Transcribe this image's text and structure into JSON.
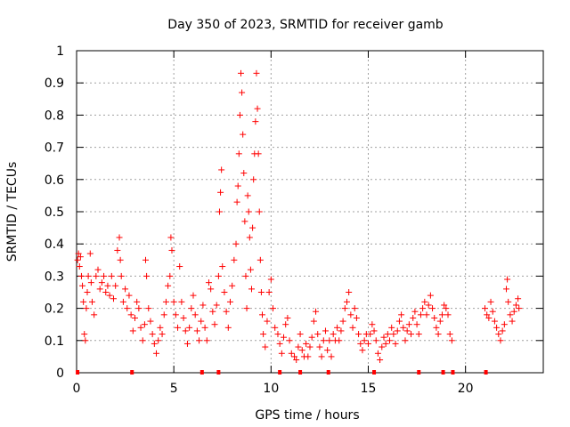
{
  "chart_data": {
    "type": "scatter",
    "title": "Day 350 of 2023, SRMTID for receiver gamb",
    "xlabel": "GPS time / hours",
    "ylabel": "SRMTID / TECUs",
    "xlim": [
      0,
      24
    ],
    "ylim": [
      0,
      1
    ],
    "x_ticks": [
      "0",
      "5",
      "10",
      "15",
      "20"
    ],
    "x_tick_values": [
      0,
      5,
      10,
      15,
      20
    ],
    "y_ticks": [
      "0",
      "0.1",
      "0.2",
      "0.3",
      "0.4",
      "0.5",
      "0.6",
      "0.7",
      "0.8",
      "0.9",
      "1"
    ],
    "y_tick_values": [
      0,
      0.1,
      0.2,
      0.3,
      0.4,
      0.5,
      0.6,
      0.7,
      0.8,
      0.9,
      1
    ],
    "grid": true,
    "marker": "+",
    "series": [
      {
        "name": "SRMTID",
        "color": "#ff0000",
        "points": [
          [
            0.05,
            0.35
          ],
          [
            0.1,
            0.37
          ],
          [
            0.15,
            0.33
          ],
          [
            0.2,
            0.36
          ],
          [
            0.25,
            0.3
          ],
          [
            0.3,
            0.27
          ],
          [
            0.35,
            0.22
          ],
          [
            0.4,
            0.12
          ],
          [
            0.45,
            0.1
          ],
          [
            0.5,
            0.2
          ],
          [
            0.55,
            0.25
          ],
          [
            0.6,
            0.3
          ],
          [
            0.7,
            0.37
          ],
          [
            0.75,
            0.28
          ],
          [
            0.8,
            0.22
          ],
          [
            0.9,
            0.18
          ],
          [
            1.0,
            0.3
          ],
          [
            1.1,
            0.32
          ],
          [
            1.2,
            0.26
          ],
          [
            1.3,
            0.28
          ],
          [
            1.4,
            0.3
          ],
          [
            1.5,
            0.25
          ],
          [
            1.6,
            0.27
          ],
          [
            1.7,
            0.24
          ],
          [
            1.8,
            0.3
          ],
          [
            1.9,
            0.23
          ],
          [
            2.0,
            0.27
          ],
          [
            2.1,
            0.38
          ],
          [
            2.2,
            0.42
          ],
          [
            2.25,
            0.35
          ],
          [
            2.3,
            0.3
          ],
          [
            2.4,
            0.22
          ],
          [
            2.5,
            0.26
          ],
          [
            2.6,
            0.2
          ],
          [
            2.7,
            0.24
          ],
          [
            2.8,
            0.18
          ],
          [
            2.9,
            0.13
          ],
          [
            3.0,
            0.17
          ],
          [
            3.1,
            0.22
          ],
          [
            3.2,
            0.2
          ],
          [
            3.3,
            0.14
          ],
          [
            3.4,
            0.1
          ],
          [
            3.5,
            0.15
          ],
          [
            3.55,
            0.35
          ],
          [
            3.6,
            0.3
          ],
          [
            3.7,
            0.2
          ],
          [
            3.8,
            0.16
          ],
          [
            3.9,
            0.12
          ],
          [
            4.0,
            0.09
          ],
          [
            4.1,
            0.06
          ],
          [
            4.2,
            0.1
          ],
          [
            4.3,
            0.14
          ],
          [
            4.4,
            0.12
          ],
          [
            4.5,
            0.18
          ],
          [
            4.6,
            0.22
          ],
          [
            4.7,
            0.27
          ],
          [
            4.8,
            0.3
          ],
          [
            4.85,
            0.42
          ],
          [
            4.9,
            0.38
          ],
          [
            5.0,
            0.22
          ],
          [
            5.1,
            0.18
          ],
          [
            5.2,
            0.14
          ],
          [
            5.3,
            0.33
          ],
          [
            5.4,
            0.22
          ],
          [
            5.5,
            0.17
          ],
          [
            5.6,
            0.13
          ],
          [
            5.7,
            0.09
          ],
          [
            5.8,
            0.14
          ],
          [
            5.9,
            0.2
          ],
          [
            6.0,
            0.24
          ],
          [
            6.1,
            0.18
          ],
          [
            6.2,
            0.13
          ],
          [
            6.3,
            0.1
          ],
          [
            6.4,
            0.16
          ],
          [
            6.5,
            0.21
          ],
          [
            6.6,
            0.14
          ],
          [
            6.7,
            0.1
          ],
          [
            6.8,
            0.28
          ],
          [
            6.9,
            0.26
          ],
          [
            7.0,
            0.19
          ],
          [
            7.1,
            0.15
          ],
          [
            7.2,
            0.21
          ],
          [
            7.3,
            0.3
          ],
          [
            7.35,
            0.5
          ],
          [
            7.4,
            0.56
          ],
          [
            7.45,
            0.63
          ],
          [
            7.5,
            0.33
          ],
          [
            7.6,
            0.25
          ],
          [
            7.7,
            0.19
          ],
          [
            7.8,
            0.14
          ],
          [
            7.9,
            0.22
          ],
          [
            8.0,
            0.27
          ],
          [
            8.1,
            0.35
          ],
          [
            8.2,
            0.4
          ],
          [
            8.25,
            0.53
          ],
          [
            8.3,
            0.58
          ],
          [
            8.35,
            0.68
          ],
          [
            8.4,
            0.8
          ],
          [
            8.45,
            0.93
          ],
          [
            8.5,
            0.87
          ],
          [
            8.55,
            0.74
          ],
          [
            8.6,
            0.62
          ],
          [
            8.65,
            0.47
          ],
          [
            8.7,
            0.3
          ],
          [
            8.75,
            0.2
          ],
          [
            8.8,
            0.55
          ],
          [
            8.85,
            0.5
          ],
          [
            8.9,
            0.42
          ],
          [
            8.95,
            0.32
          ],
          [
            9.0,
            0.26
          ],
          [
            9.05,
            0.45
          ],
          [
            9.1,
            0.6
          ],
          [
            9.15,
            0.68
          ],
          [
            9.2,
            0.78
          ],
          [
            9.25,
            0.93
          ],
          [
            9.3,
            0.82
          ],
          [
            9.35,
            0.68
          ],
          [
            9.4,
            0.5
          ],
          [
            9.45,
            0.35
          ],
          [
            9.5,
            0.25
          ],
          [
            9.55,
            0.18
          ],
          [
            9.6,
            0.12
          ],
          [
            9.7,
            0.08
          ],
          [
            9.8,
            0.16
          ],
          [
            9.9,
            0.25
          ],
          [
            10.0,
            0.29
          ],
          [
            10.1,
            0.2
          ],
          [
            10.2,
            0.14
          ],
          [
            10.35,
            0.12
          ],
          [
            10.45,
            0.09
          ],
          [
            10.55,
            0.06
          ],
          [
            10.65,
            0.11
          ],
          [
            10.75,
            0.15
          ],
          [
            10.85,
            0.17
          ],
          [
            10.95,
            0.1
          ],
          [
            11.05,
            0.06
          ],
          [
            11.2,
            0.05
          ],
          [
            11.3,
            0.04
          ],
          [
            11.4,
            0.08
          ],
          [
            11.5,
            0.12
          ],
          [
            11.6,
            0.07
          ],
          [
            11.7,
            0.05
          ],
          [
            11.8,
            0.09
          ],
          [
            11.9,
            0.05
          ],
          [
            12.0,
            0.08
          ],
          [
            12.1,
            0.11
          ],
          [
            12.2,
            0.16
          ],
          [
            12.3,
            0.19
          ],
          [
            12.4,
            0.12
          ],
          [
            12.5,
            0.08
          ],
          [
            12.6,
            0.05
          ],
          [
            12.7,
            0.1
          ],
          [
            12.8,
            0.13
          ],
          [
            12.9,
            0.07
          ],
          [
            13.0,
            0.1
          ],
          [
            13.1,
            0.05
          ],
          [
            13.2,
            0.12
          ],
          [
            13.3,
            0.1
          ],
          [
            13.4,
            0.14
          ],
          [
            13.5,
            0.1
          ],
          [
            13.6,
            0.13
          ],
          [
            13.7,
            0.16
          ],
          [
            13.8,
            0.2
          ],
          [
            13.9,
            0.22
          ],
          [
            14.0,
            0.25
          ],
          [
            14.1,
            0.18
          ],
          [
            14.2,
            0.14
          ],
          [
            14.3,
            0.2
          ],
          [
            14.4,
            0.17
          ],
          [
            14.5,
            0.12
          ],
          [
            14.6,
            0.09
          ],
          [
            14.7,
            0.07
          ],
          [
            14.8,
            0.1
          ],
          [
            14.9,
            0.12
          ],
          [
            15.0,
            0.09
          ],
          [
            15.1,
            0.12
          ],
          [
            15.2,
            0.15
          ],
          [
            15.3,
            0.13
          ],
          [
            15.4,
            0.1
          ],
          [
            15.5,
            0.06
          ],
          [
            15.6,
            0.04
          ],
          [
            15.7,
            0.08
          ],
          [
            15.8,
            0.11
          ],
          [
            15.9,
            0.09
          ],
          [
            16.0,
            0.12
          ],
          [
            16.1,
            0.1
          ],
          [
            16.2,
            0.14
          ],
          [
            16.3,
            0.12
          ],
          [
            16.4,
            0.09
          ],
          [
            16.5,
            0.13
          ],
          [
            16.6,
            0.16
          ],
          [
            16.7,
            0.18
          ],
          [
            16.8,
            0.14
          ],
          [
            16.9,
            0.1
          ],
          [
            17.0,
            0.13
          ],
          [
            17.1,
            0.15
          ],
          [
            17.2,
            0.12
          ],
          [
            17.3,
            0.17
          ],
          [
            17.4,
            0.19
          ],
          [
            17.5,
            0.15
          ],
          [
            17.6,
            0.12
          ],
          [
            17.7,
            0.18
          ],
          [
            17.8,
            0.2
          ],
          [
            17.9,
            0.22
          ],
          [
            18.0,
            0.18
          ],
          [
            18.1,
            0.21
          ],
          [
            18.2,
            0.24
          ],
          [
            18.3,
            0.2
          ],
          [
            18.4,
            0.17
          ],
          [
            18.5,
            0.14
          ],
          [
            18.6,
            0.12
          ],
          [
            18.7,
            0.16
          ],
          [
            18.8,
            0.18
          ],
          [
            18.9,
            0.21
          ],
          [
            19.0,
            0.2
          ],
          [
            19.1,
            0.18
          ],
          [
            19.2,
            0.12
          ],
          [
            19.3,
            0.1
          ],
          [
            21.0,
            0.2
          ],
          [
            21.1,
            0.18
          ],
          [
            21.2,
            0.17
          ],
          [
            21.3,
            0.22
          ],
          [
            21.4,
            0.19
          ],
          [
            21.5,
            0.16
          ],
          [
            21.6,
            0.14
          ],
          [
            21.7,
            0.12
          ],
          [
            21.8,
            0.1
          ],
          [
            21.9,
            0.13
          ],
          [
            22.0,
            0.15
          ],
          [
            22.1,
            0.26
          ],
          [
            22.15,
            0.29
          ],
          [
            22.2,
            0.22
          ],
          [
            22.3,
            0.18
          ],
          [
            22.4,
            0.16
          ],
          [
            22.5,
            0.19
          ],
          [
            22.6,
            0.21
          ],
          [
            22.7,
            0.23
          ],
          [
            22.75,
            0.2
          ]
        ],
        "baseline_markers_x": [
          0.05,
          2.85,
          6.45,
          7.3,
          10.45,
          11.5,
          12.95,
          15.3,
          17.6,
          18.85,
          19.35,
          21.05
        ]
      }
    ]
  }
}
